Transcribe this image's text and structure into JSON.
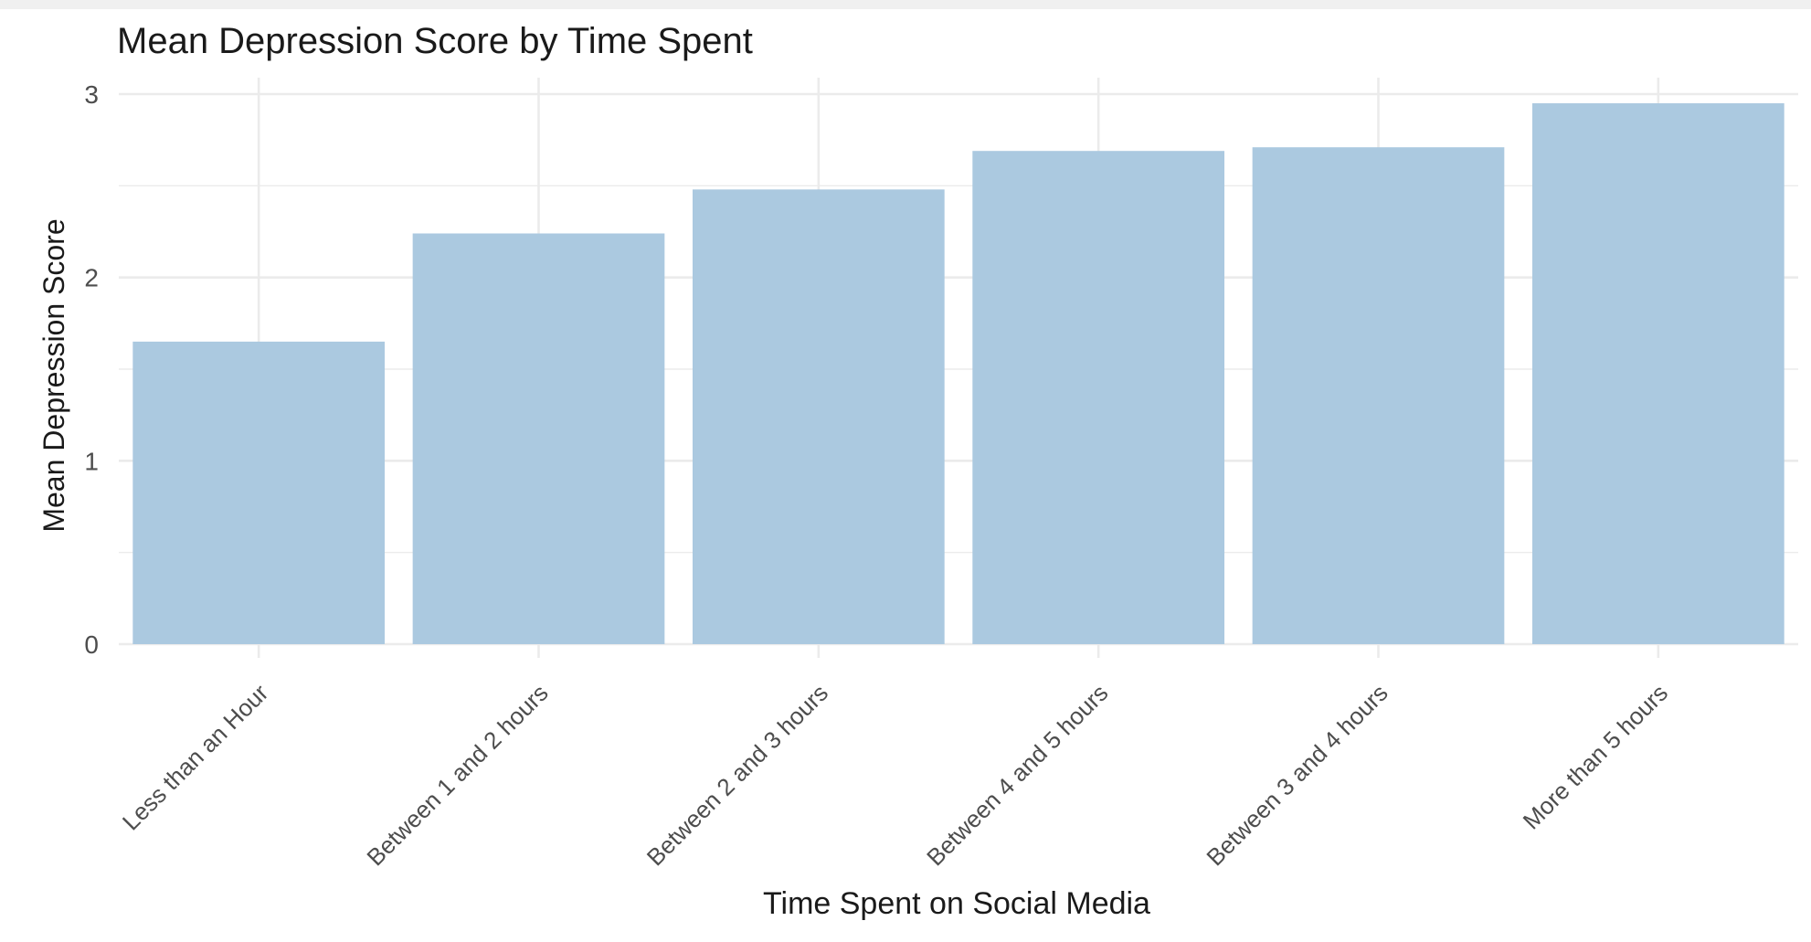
{
  "chart_data": {
    "type": "bar",
    "title": "Mean Depression Score by Time Spent",
    "xlabel": "Time Spent on Social Media",
    "ylabel": "Mean Depression Score",
    "categories": [
      "Less than an Hour",
      "Between 1 and 2 hours",
      "Between 2 and 3 hours",
      "Between 4 and 5 hours",
      "Between 3 and 4 hours",
      "More than 5 hours"
    ],
    "values": [
      1.65,
      2.24,
      2.48,
      2.69,
      2.71,
      2.95
    ],
    "ylim": [
      0,
      3
    ],
    "yticks": [
      "0",
      "1",
      "2",
      "3"
    ],
    "grid": true,
    "colors": {
      "bar": "#abc9e0",
      "grid": "#ebebeb",
      "text": "#1a1a1a",
      "tick": "#4d4d4d",
      "strip": "#f0f0f0"
    }
  }
}
